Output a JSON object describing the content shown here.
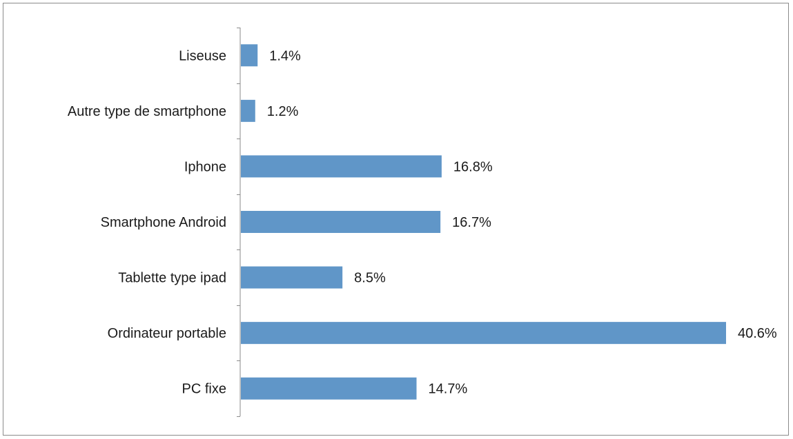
{
  "chart_data": {
    "type": "bar",
    "orientation": "horizontal",
    "categories": [
      "Liseuse",
      "Autre type de smartphone",
      "Iphone",
      "Smartphone Android",
      "Tablette type ipad",
      "Ordinateur portable",
      "PC fixe"
    ],
    "values": [
      1.4,
      1.2,
      16.8,
      16.7,
      8.5,
      40.6,
      14.7
    ],
    "value_labels": [
      "1.4%",
      "1.2%",
      "16.8%",
      "16.7%",
      "8.5%",
      "40.6%",
      "14.7%"
    ],
    "title": "",
    "xlabel": "",
    "ylabel": "",
    "xlim": [
      0,
      40.6
    ],
    "grid": false,
    "legend": "none",
    "bar_color": "#6096c8",
    "axis_color": "#8a8a8a"
  }
}
